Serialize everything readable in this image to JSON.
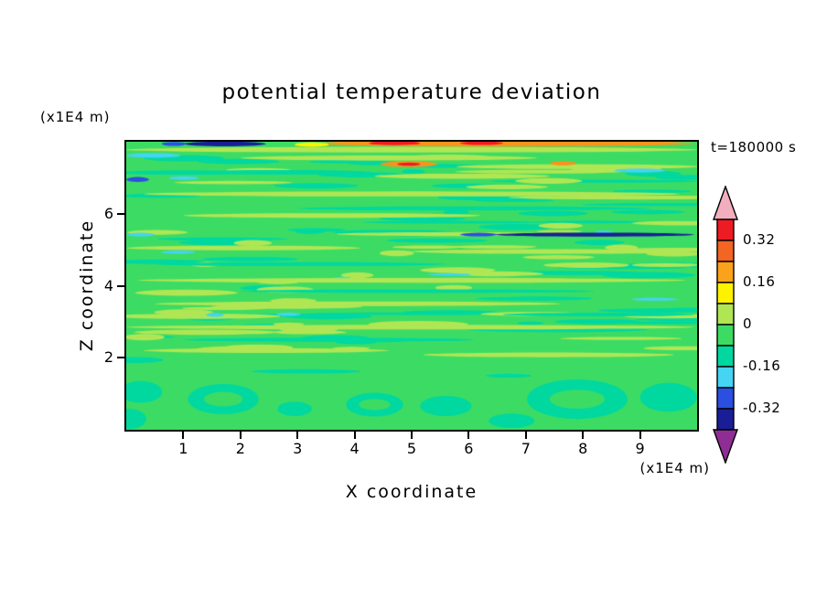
{
  "page": {
    "background": "#ffffff"
  },
  "chart_data": {
    "type": "heatmap",
    "title": "potential temperature deviation",
    "xlabel": "X coordinate",
    "ylabel": "Z coordinate",
    "x_unit_label": "(x1E4 m)",
    "z_unit_label": "(x1E4 m)",
    "time_annotation": "t=180000 s",
    "xlim": [
      0,
      10
    ],
    "zlim": [
      0,
      8
    ],
    "xticks": [
      1,
      2,
      3,
      4,
      5,
      6,
      7,
      8,
      9
    ],
    "zticks": [
      2,
      4,
      6
    ],
    "grid": false,
    "legend_position": "right-colorbar",
    "colorbar": {
      "tick_labels": [
        "0.32",
        "0.16",
        "0",
        "-0.16",
        "-0.32"
      ],
      "levels": [
        0.4,
        0.32,
        0.24,
        0.16,
        0.08,
        0,
        -0.08,
        -0.16,
        -0.24,
        -0.32,
        -0.4
      ],
      "segment_colors_top_to_bottom": [
        "#ed1c24",
        "#f26522",
        "#faa21b",
        "#fff200",
        "#b0e654",
        "#3cdc64",
        "#00d8a0",
        "#45d4f2",
        "#2b4fe0",
        "#1a1e96"
      ],
      "over_arrow_color": "#f2aebe",
      "under_arrow_color": "#8f2d94",
      "label_boundary_indices": [
        1,
        3,
        5,
        7,
        9
      ]
    },
    "field": {
      "summary": "Near-zero deviation (green) with thin horizontal wavy streaks of slightly positive (yellow-green) and slightly negative (teal/cyan) values; strong positive (orange/red) band along the top, dark negative (blue/navy) streaks near the top-left, at z=5.4 on the right, and rounded teal cells near the bottom.",
      "base_color": "#3cdc64",
      "palette": {
        "yg": "#b0e654",
        "teal": "#00d8a0",
        "cyan": "#45d4f2",
        "blue": "#2b4fe0",
        "navy": "#1a1e96",
        "orange": "#f7941d",
        "red": "#ed1c24",
        "yellow": "#fff200"
      },
      "random_texture": {
        "seed": 20817,
        "groups": [
          {
            "color": "teal",
            "count": 46,
            "z": [
              1.9,
              7.7
            ],
            "len": [
              0.4,
              1.8
            ],
            "th": [
              0.08,
              0.18
            ]
          },
          {
            "color": "teal",
            "count": 16,
            "z": [
              2.0,
              7.5
            ],
            "len": [
              1.6,
              4.0
            ],
            "th": [
              0.07,
              0.14
            ]
          },
          {
            "color": "yg",
            "count": 40,
            "z": [
              2.0,
              7.7
            ],
            "len": [
              0.5,
              2.0
            ],
            "th": [
              0.08,
              0.18
            ]
          },
          {
            "color": "yg",
            "count": 12,
            "z": [
              2.2,
              7.4
            ],
            "len": [
              2.0,
              4.5
            ],
            "th": [
              0.08,
              0.15
            ]
          },
          {
            "color": "cyan",
            "count": 8,
            "z": [
              2.6,
              7.6
            ],
            "len": [
              0.3,
              1.0
            ],
            "th": [
              0.07,
              0.12
            ]
          }
        ]
      },
      "streaks": [
        {
          "c": "yg",
          "x0": 0.0,
          "x1": 10.0,
          "z": 7.78,
          "th": 0.16
        },
        {
          "c": "yg",
          "x0": 2.0,
          "x1": 7.2,
          "z": 7.55,
          "th": 0.14
        },
        {
          "c": "teal",
          "x0": 1.2,
          "x1": 4.3,
          "z": 7.15,
          "th": 0.13
        },
        {
          "c": "cyan",
          "x0": 0.0,
          "x1": 0.95,
          "z": 7.62,
          "th": 0.13
        },
        {
          "c": "blue",
          "x0": 0.0,
          "x1": 0.4,
          "z": 6.95,
          "th": 0.14
        },
        {
          "c": "cyan",
          "x0": 8.55,
          "x1": 9.45,
          "z": 7.2,
          "th": 0.11
        },
        {
          "c": "orange",
          "x0": 3.3,
          "x1": 9.95,
          "z": 7.95,
          "th": 0.17
        },
        {
          "c": "yellow",
          "x0": 2.95,
          "x1": 3.55,
          "z": 7.92,
          "th": 0.12
        },
        {
          "c": "red",
          "x0": 4.25,
          "x1": 5.15,
          "z": 7.96,
          "th": 0.11
        },
        {
          "c": "red",
          "x0": 5.85,
          "x1": 6.6,
          "z": 7.96,
          "th": 0.1
        },
        {
          "c": "navy",
          "x0": 1.0,
          "x1": 2.45,
          "z": 7.94,
          "th": 0.13
        },
        {
          "c": "blue",
          "x0": 0.62,
          "x1": 1.05,
          "z": 7.94,
          "th": 0.11
        },
        {
          "c": "orange",
          "x0": 4.45,
          "x1": 5.45,
          "z": 7.38,
          "th": 0.16
        },
        {
          "c": "red",
          "x0": 4.75,
          "x1": 5.15,
          "z": 7.38,
          "th": 0.09
        },
        {
          "c": "orange",
          "x0": 7.42,
          "x1": 7.88,
          "z": 7.4,
          "th": 0.12
        },
        {
          "c": "yg",
          "x0": 0.3,
          "x1": 9.7,
          "z": 6.55,
          "th": 0.14
        },
        {
          "c": "teal",
          "x0": 3.0,
          "x1": 9.2,
          "z": 6.15,
          "th": 0.11
        },
        {
          "c": "yg",
          "x0": 1.0,
          "x1": 6.2,
          "z": 5.95,
          "th": 0.13
        },
        {
          "c": "navy",
          "x0": 6.45,
          "x1": 9.95,
          "z": 5.42,
          "th": 0.11
        },
        {
          "c": "blue",
          "x0": 5.85,
          "x1": 6.5,
          "z": 5.42,
          "th": 0.1
        },
        {
          "c": "cyan",
          "x0": 0.0,
          "x1": 0.5,
          "z": 5.42,
          "th": 0.1
        },
        {
          "c": "yg",
          "x0": 0.0,
          "x1": 4.1,
          "z": 5.05,
          "th": 0.13
        },
        {
          "c": "yg",
          "x0": 5.0,
          "x1": 9.9,
          "z": 4.95,
          "th": 0.13
        },
        {
          "c": "teal",
          "x0": 0.5,
          "x1": 5.6,
          "z": 4.6,
          "th": 0.11
        },
        {
          "c": "yg",
          "x0": 0.2,
          "x1": 9.8,
          "z": 4.15,
          "th": 0.13
        },
        {
          "c": "teal",
          "x0": 2.0,
          "x1": 8.2,
          "z": 3.85,
          "th": 0.1
        },
        {
          "c": "yg",
          "x0": 0.5,
          "x1": 7.6,
          "z": 3.5,
          "th": 0.13
        },
        {
          "c": "teal",
          "x0": 6.6,
          "x1": 9.95,
          "z": 3.2,
          "th": 0.1
        },
        {
          "c": "yg",
          "x0": 0.0,
          "x1": 9.95,
          "z": 2.85,
          "th": 0.13
        },
        {
          "c": "teal",
          "x0": 1.0,
          "x1": 6.1,
          "z": 2.5,
          "th": 0.11
        },
        {
          "c": "yg",
          "x0": 0.3,
          "x1": 4.6,
          "z": 2.2,
          "th": 0.13
        },
        {
          "c": "yg",
          "x0": 5.2,
          "x1": 9.6,
          "z": 2.08,
          "th": 0.13
        },
        {
          "c": "teal",
          "x0": 2.2,
          "x1": 4.1,
          "z": 1.62,
          "th": 0.12
        },
        {
          "c": "teal",
          "x0": 6.3,
          "x1": 7.1,
          "z": 1.5,
          "th": 0.11
        }
      ],
      "blobs": [
        {
          "c": "teal",
          "x": 1.7,
          "z": 0.85,
          "rx": 0.62,
          "rz": 0.42,
          "ring": true
        },
        {
          "c": "teal",
          "x": 0.25,
          "z": 1.05,
          "rx": 0.38,
          "rz": 0.3,
          "ring": false
        },
        {
          "c": "teal",
          "x": 0.05,
          "z": 0.3,
          "rx": 0.3,
          "rz": 0.28,
          "ring": false
        },
        {
          "c": "teal",
          "x": 2.95,
          "z": 0.58,
          "rx": 0.3,
          "rz": 0.2,
          "ring": false
        },
        {
          "c": "teal",
          "x": 4.35,
          "z": 0.7,
          "rx": 0.5,
          "rz": 0.33,
          "ring": true
        },
        {
          "c": "teal",
          "x": 5.6,
          "z": 0.66,
          "rx": 0.45,
          "rz": 0.28,
          "ring": false
        },
        {
          "c": "teal",
          "x": 6.75,
          "z": 0.25,
          "rx": 0.4,
          "rz": 0.2,
          "ring": false
        },
        {
          "c": "teal",
          "x": 7.9,
          "z": 0.85,
          "rx": 0.88,
          "rz": 0.55,
          "ring": true
        },
        {
          "c": "teal",
          "x": 9.5,
          "z": 0.9,
          "rx": 0.5,
          "rz": 0.4,
          "ring": false
        }
      ]
    }
  }
}
